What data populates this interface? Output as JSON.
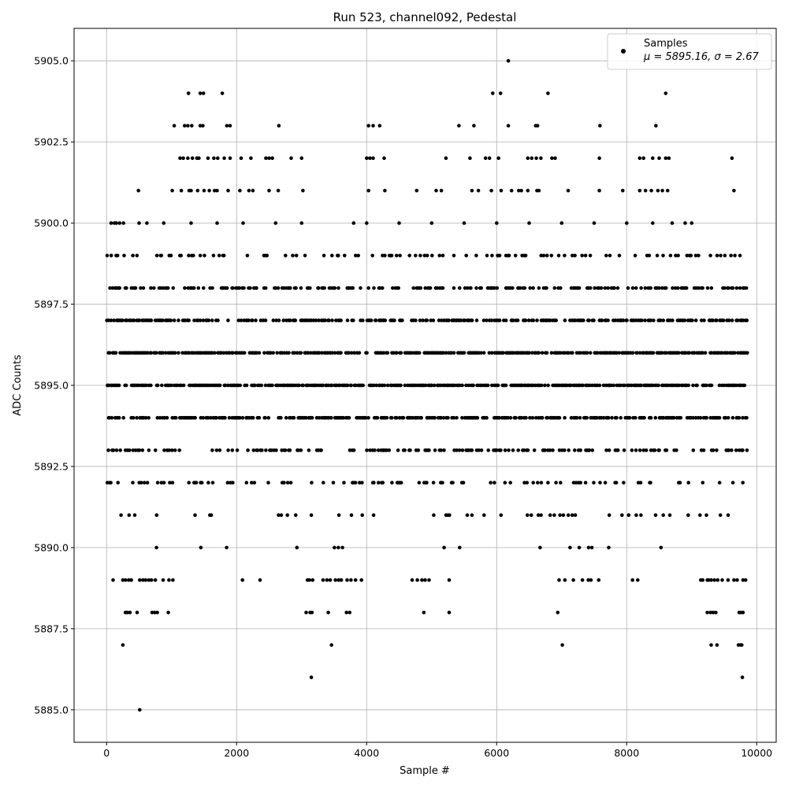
{
  "chart_data": {
    "type": "scatter",
    "title": "Run 523, channel092, Pedestal",
    "xlabel": "Sample #",
    "ylabel": "ADC Counts",
    "xlim": [
      -500,
      10300
    ],
    "ylim": [
      5884,
      5906
    ],
    "xticks": [
      0,
      2000,
      4000,
      6000,
      8000,
      10000
    ],
    "yticks": [
      5885.0,
      5887.5,
      5890.0,
      5892.5,
      5895.0,
      5897.5,
      5900.0,
      5902.5,
      5905.0
    ],
    "xtick_labels": [
      "0",
      "2000",
      "4000",
      "6000",
      "8000",
      "10000"
    ],
    "ytick_labels": [
      "5885.0",
      "5887.5",
      "5890.0",
      "5892.5",
      "5895.0",
      "5897.5",
      "5900.0",
      "5902.5",
      "5905.0"
    ],
    "grid": true,
    "legend_position": "top-right",
    "series": [
      {
        "name": "Samples",
        "legend_stats": "μ = 5895.16, σ = 2.67",
        "color": "#000000",
        "x_range": [
          0,
          9850
        ],
        "mean": 5895.16,
        "sigma": 2.67,
        "n_points": 9850,
        "value_levels": [
          {
            "y": 5885,
            "x": [
              510
            ]
          },
          {
            "y": 5886,
            "x": [
              3150,
              9780
            ]
          },
          {
            "y": 5887,
            "x": [
              250,
              3460,
              7010,
              9300,
              9390,
              9720,
              9750,
              9770
            ]
          },
          {
            "y": 5888,
            "x": [
              290,
              320,
              360,
              470,
              700,
              740,
              780,
              950,
              3070,
              3130,
              3160,
              3410,
              3690,
              3740,
              4880,
              5270,
              6940,
              9240,
              9290,
              9330,
              9370,
              9730,
              9760,
              9790
            ]
          },
          {
            "y": 5889,
            "x": [
              100,
              250,
              290,
              340,
              380,
              510,
              560,
              600,
              650,
              690,
              750,
              870,
              960,
              1020,
              2090,
              2360,
              3090,
              3120,
              3170,
              3330,
              3390,
              3440,
              3520,
              3570,
              3610,
              3700,
              3760,
              3830,
              3920,
              4700,
              4780,
              4850,
              4900,
              4960,
              5270,
              6960,
              7050,
              7180,
              7320,
              7410,
              7450,
              7570,
              8090,
              8170,
              9140,
              9170,
              9240,
              9260,
              9300,
              9350,
              9400,
              9470,
              9560,
              9650,
              9700,
              9790,
              9830
            ]
          },
          {
            "y": 5900,
            "x": [
              70,
              120,
              150,
              200,
              260,
              500,
              620,
              880,
              1300,
              1700,
              2100,
              2600,
              3000,
              3800,
              4000,
              4500,
              5000,
              5500,
              6000,
              6500,
              7000,
              7500,
              8000,
              8400,
              8700,
              8900,
              9000
            ]
          },
          {
            "y": 5901,
            "x": [
              490,
              1010,
              1150,
              1270,
              1300,
              1400,
              1500,
              1580,
              1660,
              1700,
              1870,
              2050,
              2190,
              2250,
              2500,
              2640,
              3020,
              4030,
              4280,
              4770,
              5070,
              5150,
              5620,
              5720,
              5920,
              6070,
              6230,
              6340,
              6380,
              6480,
              6620,
              6650,
              7100,
              7580,
              7940,
              8200,
              8290,
              8380,
              8480,
              8550,
              8630,
              9650
            ]
          },
          {
            "y": 5902,
            "x": [
              1130,
              1180,
              1250,
              1320,
              1390,
              1420,
              1560,
              1650,
              1710,
              1810,
              1900,
              2070,
              2220,
              2450,
              2500,
              2550,
              2840,
              3000,
              4000,
              4050,
              4100,
              4270,
              5220,
              5590,
              5830,
              5890,
              6030,
              6480,
              6540,
              6610,
              6680,
              6850,
              6900,
              7580,
              8200,
              8260,
              8400,
              8500,
              8600,
              8650,
              9620
            ]
          },
          {
            "y": 5903,
            "x": [
              1040,
              1200,
              1250,
              1310,
              1440,
              1480,
              1850,
              1900,
              2650,
              4030,
              4100,
              4200,
              5420,
              5650,
              6180,
              6600,
              6630,
              7590,
              8450
            ]
          },
          {
            "y": 5904,
            "x": [
              1260,
              1440,
              1490,
              1780,
              5940,
              6060,
              6790,
              8600
            ]
          },
          {
            "y": 5905,
            "x": [
              6180
            ]
          }
        ]
      }
    ]
  }
}
